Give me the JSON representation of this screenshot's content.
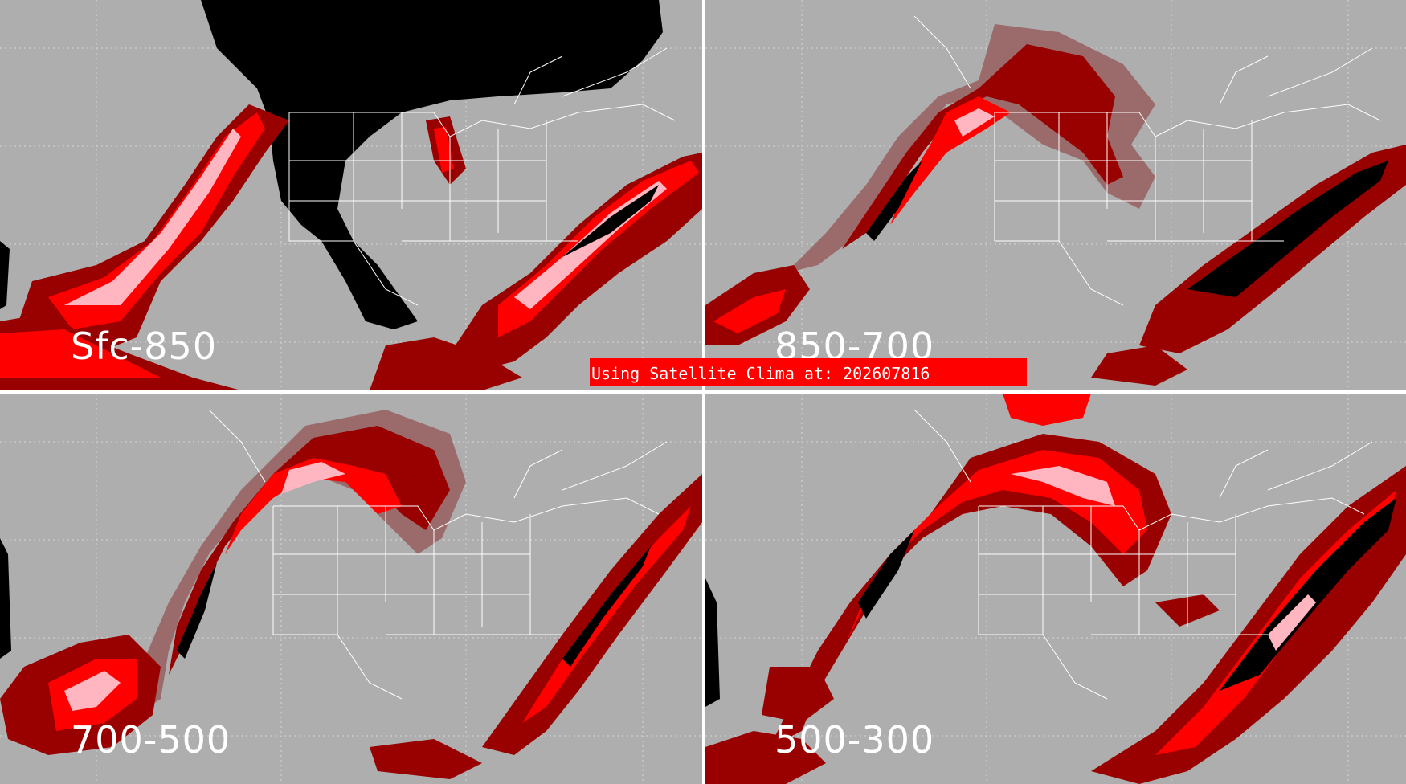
{
  "panels": [
    {
      "id": "p1",
      "label": "Sfc-850",
      "land_mask": "black-west"
    },
    {
      "id": "p2",
      "label": "850-700",
      "land_mask": "none"
    },
    {
      "id": "p3",
      "label": "700-500",
      "land_mask": "none"
    },
    {
      "id": "p4",
      "label": "500-300",
      "land_mask": "none"
    }
  ],
  "banner": {
    "text": "Using Satellite Clima at: 202607816"
  },
  "colors": {
    "background": "#aeaeae",
    "light": "#ffb6c1",
    "medium": "#ff0000",
    "dark": "#990000",
    "muted": "#9b6b6b",
    "void": "#000000",
    "borders": "#ffffff",
    "banner": "#ff0000"
  }
}
